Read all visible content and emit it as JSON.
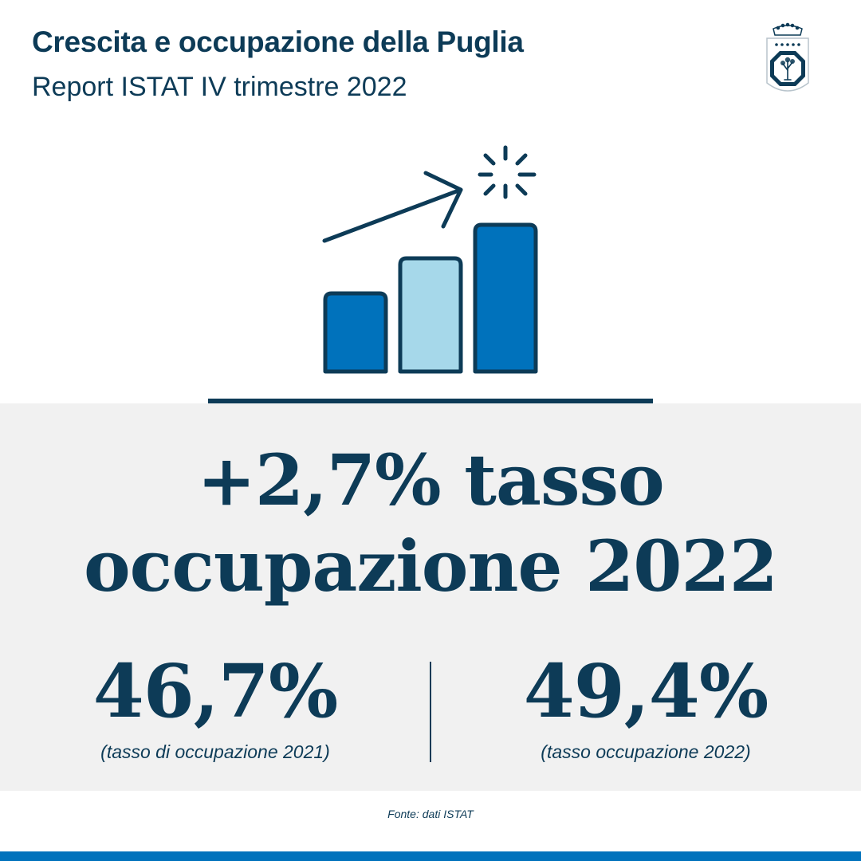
{
  "header": {
    "title": "Crescita e occupazione della Puglia",
    "subtitle": "Report ISTAT IV trimestre 2022"
  },
  "logo": {
    "name": "regione-puglia-emblem"
  },
  "illustration": {
    "icon": "growth-bar-chart-icon",
    "colors": {
      "outline": "#0d3b57",
      "bar_dark": "#0072bc",
      "bar_light": "#a6d8ea"
    }
  },
  "headline": {
    "line1": "+2,7% tasso",
    "line2": "occupazione 2022"
  },
  "stats": [
    {
      "value": "46,7%",
      "label": "(tasso di occupazione 2021)"
    },
    {
      "value": "49,4%",
      "label": "(tasso occupazione 2022)"
    }
  ],
  "source": "Fonte: dati ISTAT",
  "colors": {
    "primary_text": "#0d3b57",
    "panel_background": "#f1f1f1",
    "accent_blue": "#0072bc"
  }
}
